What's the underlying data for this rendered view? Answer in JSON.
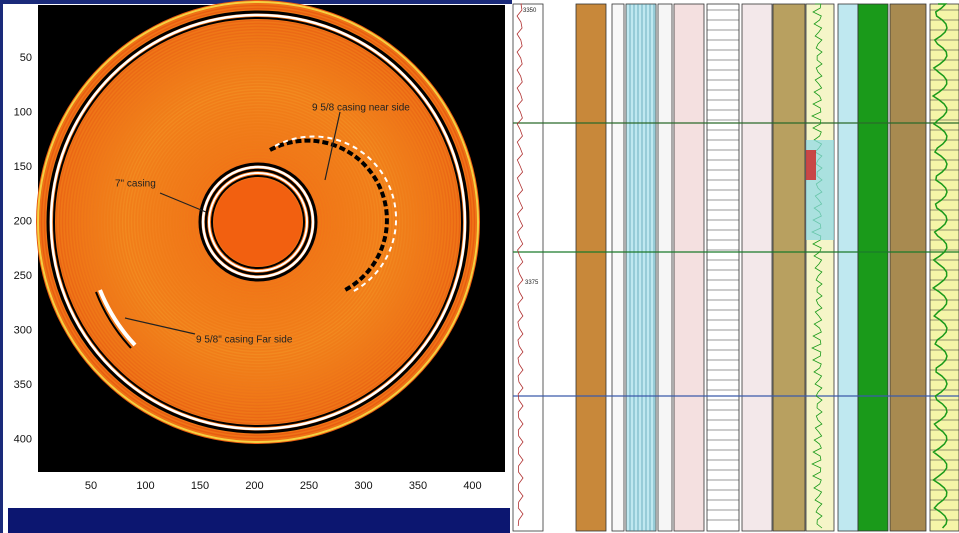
{
  "image_panel": {
    "x_ticks": [
      50,
      100,
      150,
      200,
      250,
      300,
      350,
      400
    ],
    "y_ticks": [
      50,
      100,
      150,
      200,
      250,
      300,
      350,
      400
    ],
    "annotations": [
      "9 5/8 casing near side",
      "7\" casing",
      "9 5/8\" casing Far side"
    ]
  },
  "log_panel": {
    "depth_labels": [
      "3350",
      "3375"
    ]
  }
}
